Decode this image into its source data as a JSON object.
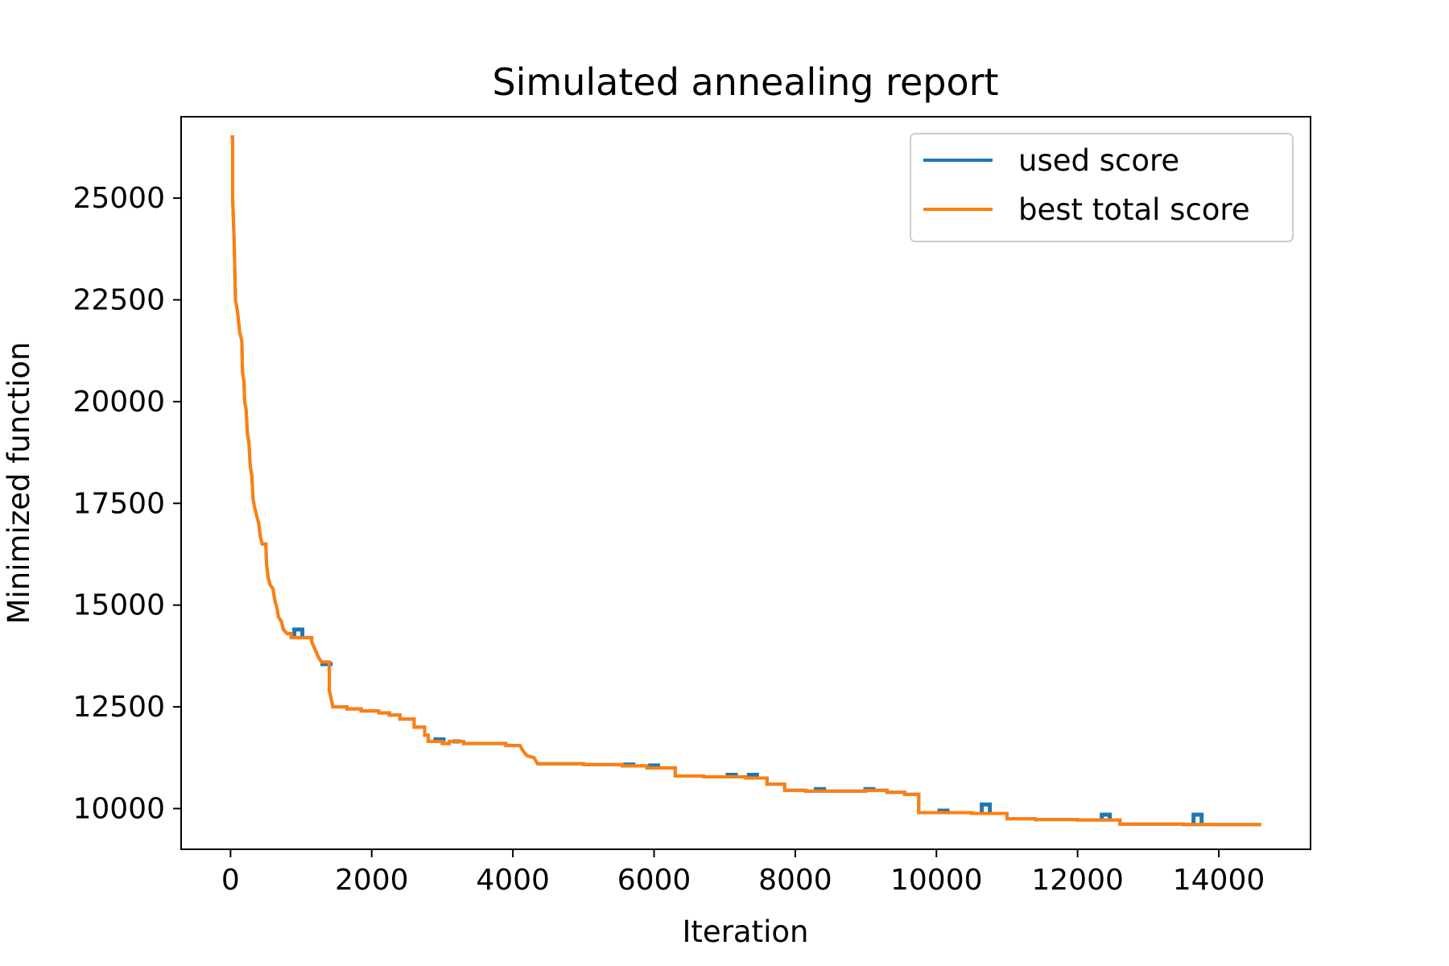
{
  "chart_data": {
    "type": "line",
    "title": "Simulated annealing report",
    "xlabel": "Iteration",
    "ylabel": "Minimized function",
    "xlim": [
      -700,
      15300
    ],
    "ylim": [
      9000,
      27000
    ],
    "x_ticks": [
      0,
      2000,
      4000,
      6000,
      8000,
      10000,
      12000,
      14000
    ],
    "y_ticks": [
      10000,
      12500,
      15000,
      17500,
      20000,
      22500,
      25000
    ],
    "grid": false,
    "legend_position": "top-right",
    "colors": {
      "used_score": "#1f77b4",
      "best_total_score": "#ff7f0e"
    },
    "series": [
      {
        "name": "best total score",
        "key": "best",
        "points": [
          [
            0,
            26500
          ],
          [
            30,
            26500
          ],
          [
            30,
            25000
          ],
          [
            50,
            24000
          ],
          [
            70,
            22500
          ],
          [
            100,
            22200
          ],
          [
            130,
            21700
          ],
          [
            160,
            21500
          ],
          [
            170,
            20700
          ],
          [
            190,
            20500
          ],
          [
            200,
            20000
          ],
          [
            220,
            19800
          ],
          [
            240,
            19200
          ],
          [
            260,
            19000
          ],
          [
            280,
            18400
          ],
          [
            300,
            18200
          ],
          [
            320,
            17600
          ],
          [
            340,
            17400
          ],
          [
            370,
            17200
          ],
          [
            400,
            17000
          ],
          [
            420,
            16700
          ],
          [
            450,
            16500
          ],
          [
            500,
            16500
          ],
          [
            510,
            16000
          ],
          [
            530,
            15700
          ],
          [
            560,
            15500
          ],
          [
            600,
            15400
          ],
          [
            630,
            15100
          ],
          [
            660,
            14900
          ],
          [
            680,
            14700
          ],
          [
            720,
            14600
          ],
          [
            750,
            14400
          ],
          [
            800,
            14300
          ],
          [
            860,
            14300
          ],
          [
            860,
            14200
          ],
          [
            1150,
            14200
          ],
          [
            1150,
            14100
          ],
          [
            1200,
            13900
          ],
          [
            1250,
            13700
          ],
          [
            1290,
            13600
          ],
          [
            1400,
            13600
          ],
          [
            1400,
            12900
          ],
          [
            1450,
            12500
          ],
          [
            1650,
            12500
          ],
          [
            1650,
            12450
          ],
          [
            1850,
            12450
          ],
          [
            1850,
            12400
          ],
          [
            2100,
            12400
          ],
          [
            2100,
            12350
          ],
          [
            2250,
            12350
          ],
          [
            2250,
            12300
          ],
          [
            2400,
            12300
          ],
          [
            2400,
            12200
          ],
          [
            2600,
            12200
          ],
          [
            2600,
            12000
          ],
          [
            2750,
            12000
          ],
          [
            2750,
            11800
          ],
          [
            2800,
            11800
          ],
          [
            2800,
            11650
          ],
          [
            3000,
            11650
          ],
          [
            3000,
            11600
          ],
          [
            3100,
            11600
          ],
          [
            3100,
            11650
          ],
          [
            3300,
            11650
          ],
          [
            3300,
            11600
          ],
          [
            3900,
            11600
          ],
          [
            3900,
            11550
          ],
          [
            4100,
            11550
          ],
          [
            4150,
            11400
          ],
          [
            4200,
            11300
          ],
          [
            4300,
            11250
          ],
          [
            4350,
            11100
          ],
          [
            5000,
            11100
          ],
          [
            5000,
            11080
          ],
          [
            5550,
            11080
          ],
          [
            5550,
            11050
          ],
          [
            5900,
            11050
          ],
          [
            5900,
            11000
          ],
          [
            6300,
            11000
          ],
          [
            6300,
            10800
          ],
          [
            6700,
            10800
          ],
          [
            6700,
            10780
          ],
          [
            7300,
            10780
          ],
          [
            7300,
            10750
          ],
          [
            7600,
            10750
          ],
          [
            7600,
            10600
          ],
          [
            7850,
            10600
          ],
          [
            7850,
            10450
          ],
          [
            8150,
            10450
          ],
          [
            8150,
            10430
          ],
          [
            9000,
            10430
          ],
          [
            9000,
            10450
          ],
          [
            9300,
            10450
          ],
          [
            9300,
            10400
          ],
          [
            9550,
            10400
          ],
          [
            9550,
            10350
          ],
          [
            9750,
            10350
          ],
          [
            9750,
            9900
          ],
          [
            10500,
            9900
          ],
          [
            10500,
            9880
          ],
          [
            11000,
            9880
          ],
          [
            11000,
            9750
          ],
          [
            11400,
            9750
          ],
          [
            11400,
            9730
          ],
          [
            12000,
            9730
          ],
          [
            12000,
            9720
          ],
          [
            12600,
            9720
          ],
          [
            12600,
            9620
          ],
          [
            13500,
            9620
          ],
          [
            13500,
            9610
          ],
          [
            14600,
            9610
          ]
        ]
      },
      {
        "name": "used score",
        "key": "used",
        "spikes": [
          [
            960,
            14400
          ],
          [
            1360,
            13550
          ],
          [
            2960,
            11700
          ],
          [
            3200,
            11650
          ],
          [
            5650,
            11080
          ],
          [
            6000,
            11060
          ],
          [
            7100,
            10830
          ],
          [
            7400,
            10830
          ],
          [
            8350,
            10480
          ],
          [
            9050,
            10480
          ],
          [
            10100,
            9950
          ],
          [
            10700,
            10100
          ],
          [
            12400,
            9850
          ],
          [
            13700,
            9850
          ]
        ]
      }
    ]
  }
}
